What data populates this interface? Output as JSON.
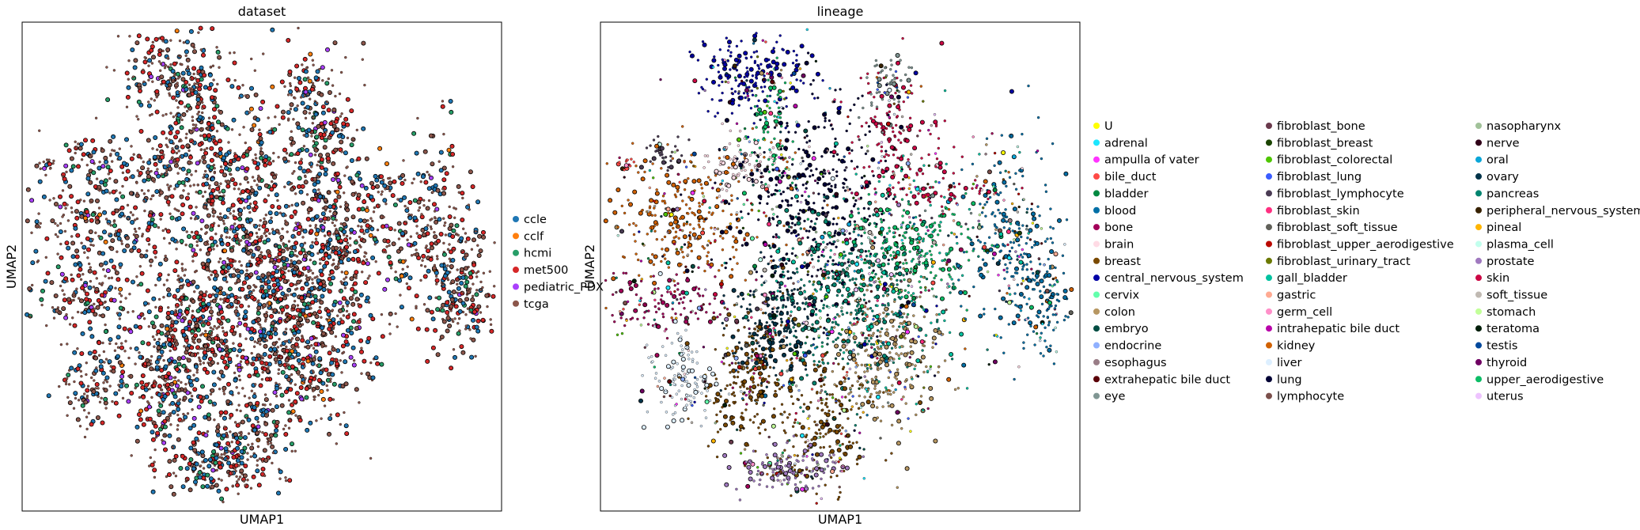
{
  "chart_data": [
    {
      "type": "scatter",
      "title": "dataset",
      "xlabel": "UMAP1",
      "ylabel": "UMAP2",
      "grid": false,
      "legend_position": "right",
      "legend": [
        {
          "label": "ccle",
          "color": "#1f77b4"
        },
        {
          "label": "cclf",
          "color": "#ff7f0e"
        },
        {
          "label": "hcmi",
          "color": "#279e68"
        },
        {
          "label": "met500",
          "color": "#d62728"
        },
        {
          "label": "pediatric_PDX",
          "color": "#aa40fc"
        },
        {
          "label": "tcga",
          "color": "#8c564b"
        }
      ]
    },
    {
      "type": "scatter",
      "title": "lineage",
      "xlabel": "UMAP1",
      "ylabel": "UMAP2",
      "grid": false,
      "legend_position": "right",
      "legend": [
        {
          "label": "U",
          "color": "#ffff00"
        },
        {
          "label": "adrenal",
          "color": "#1ce6ff"
        },
        {
          "label": "ampulla of vater",
          "color": "#ff34ff"
        },
        {
          "label": "bile_duct",
          "color": "#ff4a46"
        },
        {
          "label": "bladder",
          "color": "#008941"
        },
        {
          "label": "blood",
          "color": "#006fa6"
        },
        {
          "label": "bone",
          "color": "#a30059"
        },
        {
          "label": "brain",
          "color": "#ffdbe5"
        },
        {
          "label": "breast",
          "color": "#7a4900"
        },
        {
          "label": "central_nervous_system",
          "color": "#0000a6"
        },
        {
          "label": "cervix",
          "color": "#63ffac"
        },
        {
          "label": "colon",
          "color": "#b79762"
        },
        {
          "label": "embryo",
          "color": "#004d43"
        },
        {
          "label": "endocrine",
          "color": "#8fb0ff"
        },
        {
          "label": "esophagus",
          "color": "#997d87"
        },
        {
          "label": "extrahepatic bile duct",
          "color": "#5a0007"
        },
        {
          "label": "eye",
          "color": "#809693"
        },
        {
          "label": "fibroblast_bone",
          "color": "#6a3a4c"
        },
        {
          "label": "fibroblast_breast",
          "color": "#1b4400"
        },
        {
          "label": "fibroblast_colorectal",
          "color": "#4fc601"
        },
        {
          "label": "fibroblast_lung",
          "color": "#3b5dff"
        },
        {
          "label": "fibroblast_lymphocyte",
          "color": "#4a3b53"
        },
        {
          "label": "fibroblast_skin",
          "color": "#ff2f80"
        },
        {
          "label": "fibroblast_soft_tissue",
          "color": "#61615a"
        },
        {
          "label": "fibroblast_upper_aerodigestive",
          "color": "#ba0900"
        },
        {
          "label": "fibroblast_urinary_tract",
          "color": "#6b7900"
        },
        {
          "label": "gall_bladder",
          "color": "#00c2a0"
        },
        {
          "label": "gastric",
          "color": "#ffaa92"
        },
        {
          "label": "germ_cell",
          "color": "#ff90c9"
        },
        {
          "label": "intrahepatic bile duct",
          "color": "#b903aa"
        },
        {
          "label": "kidney",
          "color": "#d16100"
        },
        {
          "label": "liver",
          "color": "#ddefff"
        },
        {
          "label": "lung",
          "color": "#000035"
        },
        {
          "label": "lymphocyte",
          "color": "#7b4f4b"
        },
        {
          "label": "nasopharynx",
          "color": "#a1c299"
        },
        {
          "label": "nerve",
          "color": "#300018"
        },
        {
          "label": "oral",
          "color": "#0aa6d8"
        },
        {
          "label": "ovary",
          "color": "#013349"
        },
        {
          "label": "pancreas",
          "color": "#00846f"
        },
        {
          "label": "peripheral_nervous_system",
          "color": "#372101"
        },
        {
          "label": "pineal",
          "color": "#ffb500"
        },
        {
          "label": "plasma_cell",
          "color": "#c2ffed"
        },
        {
          "label": "prostate",
          "color": "#a079bf"
        },
        {
          "label": "skin",
          "color": "#cc0744"
        },
        {
          "label": "soft_tissue",
          "color": "#c0b9b2"
        },
        {
          "label": "stomach",
          "color": "#c2ff99"
        },
        {
          "label": "teratoma",
          "color": "#001e09"
        },
        {
          "label": "testis",
          "color": "#00489c"
        },
        {
          "label": "thyroid",
          "color": "#6f0062"
        },
        {
          "label": "upper_aerodigestive",
          "color": "#0cbd66"
        },
        {
          "label": "uterus",
          "color": "#eec3ff"
        }
      ]
    }
  ]
}
